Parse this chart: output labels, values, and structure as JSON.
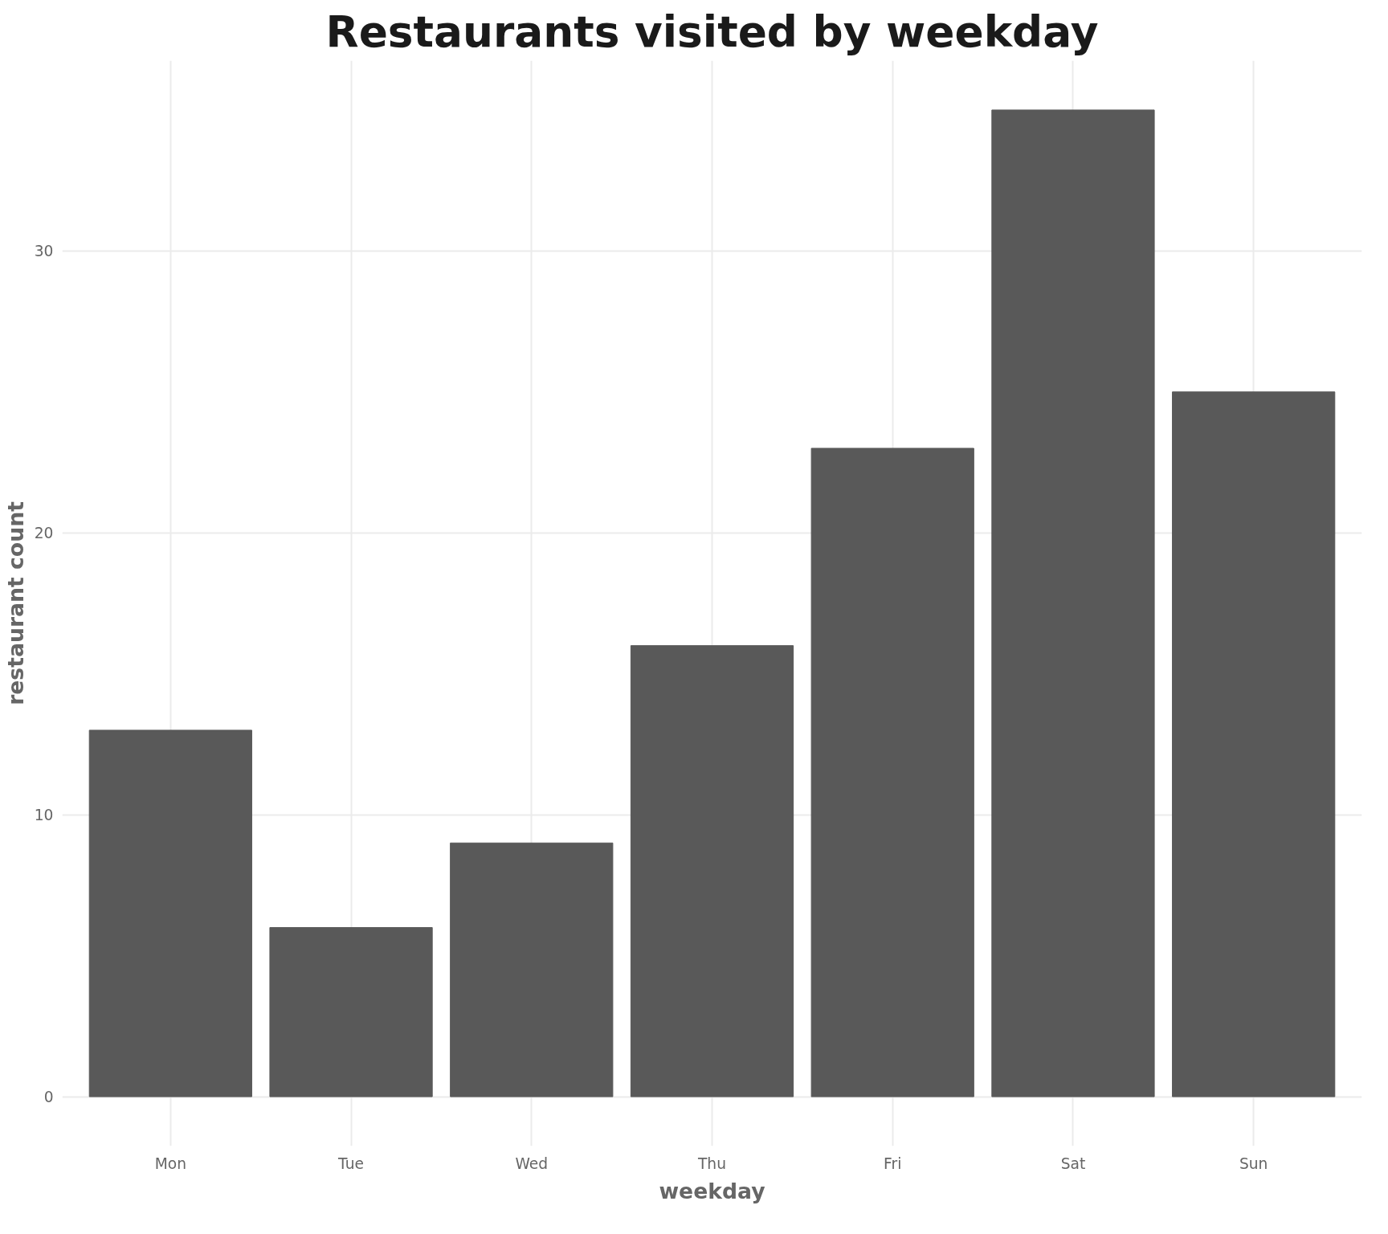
{
  "chart_data": {
    "type": "bar",
    "title": "Restaurants visited by weekday",
    "xlabel": "weekday",
    "ylabel": "restaurant count",
    "categories": [
      "Mon",
      "Tue",
      "Wed",
      "Thu",
      "Fri",
      "Sat",
      "Sun"
    ],
    "values": [
      13,
      6,
      9,
      16,
      23,
      35,
      25
    ],
    "color": "#595959",
    "ylim": [
      -1.75,
      36.75
    ],
    "yticks": [
      0,
      10,
      20,
      30
    ],
    "grid": true
  }
}
